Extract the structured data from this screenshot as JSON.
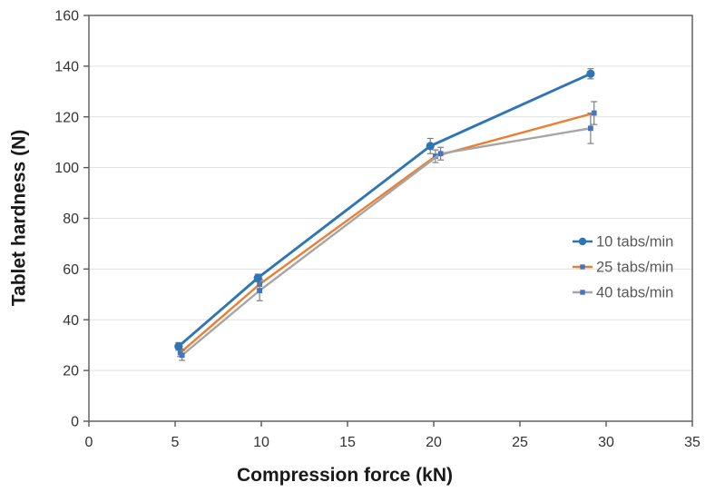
{
  "chart_data": {
    "type": "line",
    "title": "",
    "xlabel": "Compression force (kN)",
    "ylabel": "Tablet hardness (N)",
    "xlim": [
      0,
      35
    ],
    "ylim": [
      0,
      160
    ],
    "xticks": [
      0,
      5,
      10,
      15,
      20,
      25,
      30,
      35
    ],
    "yticks": [
      0,
      20,
      40,
      60,
      80,
      100,
      120,
      140,
      160
    ],
    "grid": "horizontal",
    "legend_position": "right-middle",
    "colors": {
      "axis": "#595959",
      "gridline": "#E0E0E0",
      "tick_label": "#333333",
      "legend_text": "#595959",
      "error_bar": "#7F7F7F",
      "background": "#FFFFFF"
    },
    "series": [
      {
        "name": "10 tabs/min",
        "color": "#2E75B6",
        "marker": "circle",
        "marker_color": "#2E75B6",
        "x": [
          5.2,
          9.8,
          19.8,
          29.1
        ],
        "y": [
          29.5,
          56.5,
          108.5,
          137
        ],
        "yerr": [
          1.5,
          1.5,
          3,
          2
        ]
      },
      {
        "name": "25 tabs/min",
        "color": "#ED7D31",
        "marker": "square",
        "marker_color": "#4472C4",
        "x": [
          5.3,
          9.9,
          20.1,
          29.3
        ],
        "y": [
          27,
          54,
          104.5,
          121.5
        ],
        "yerr": [
          1.5,
          2,
          2.5,
          4.5
        ]
      },
      {
        "name": "40 tabs/min",
        "color": "#A6A6A6",
        "marker": "square",
        "marker_color": "#4472C4",
        "x": [
          5.4,
          9.9,
          20.4,
          29.1
        ],
        "y": [
          26,
          51.5,
          105.5,
          115.5
        ],
        "yerr": [
          2,
          4,
          2.5,
          6
        ]
      }
    ]
  }
}
